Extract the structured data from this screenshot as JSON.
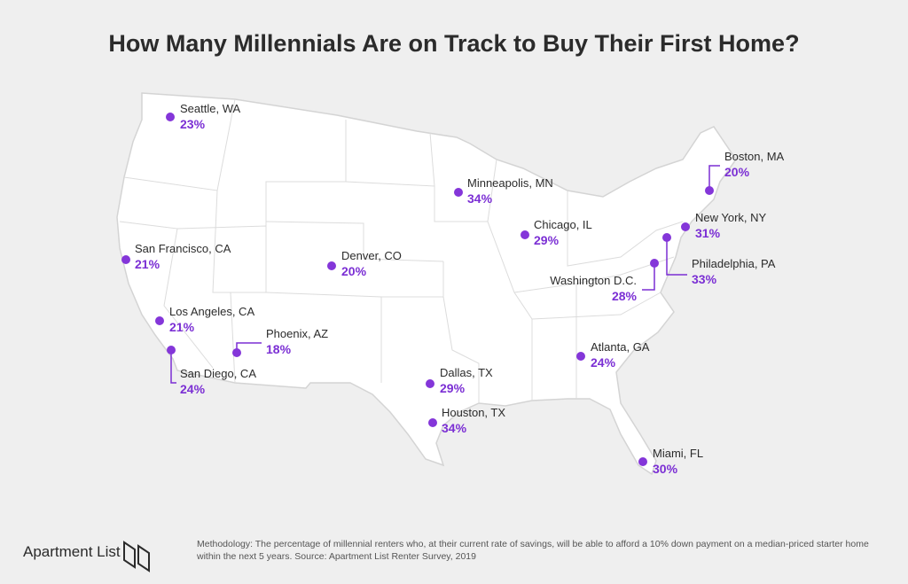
{
  "title": "How Many Millennials Are on Track to Buy Their First Home?",
  "cities": [
    {
      "name": "Seattle, WA",
      "pct": "23%"
    },
    {
      "name": "San Francisco, CA",
      "pct": "21%"
    },
    {
      "name": "Los Angeles, CA",
      "pct": "21%"
    },
    {
      "name": "San Diego, CA",
      "pct": "24%"
    },
    {
      "name": "Phoenix, AZ",
      "pct": "18%"
    },
    {
      "name": "Denver, CO",
      "pct": "20%"
    },
    {
      "name": "Minneapolis, MN",
      "pct": "34%"
    },
    {
      "name": "Chicago, IL",
      "pct": "29%"
    },
    {
      "name": "Dallas, TX",
      "pct": "29%"
    },
    {
      "name": "Houston, TX",
      "pct": "34%"
    },
    {
      "name": "Atlanta, GA",
      "pct": "24%"
    },
    {
      "name": "Miami, FL",
      "pct": "30%"
    },
    {
      "name": "Washington D.C.",
      "pct": "28%"
    },
    {
      "name": "Philadelphia, PA",
      "pct": "33%"
    },
    {
      "name": "New York, NY",
      "pct": "31%"
    },
    {
      "name": "Boston, MA",
      "pct": "20%"
    }
  ],
  "footer": {
    "brand": "Apartment List",
    "note_line1": "Methodology: The percentage of millennial renters who, at their current rate of savings, will be able to afford a 10% down payment on a median-priced starter home",
    "note_line2": "within the next 5 years. Source: Apartment List Renter Survey, 2019"
  }
}
